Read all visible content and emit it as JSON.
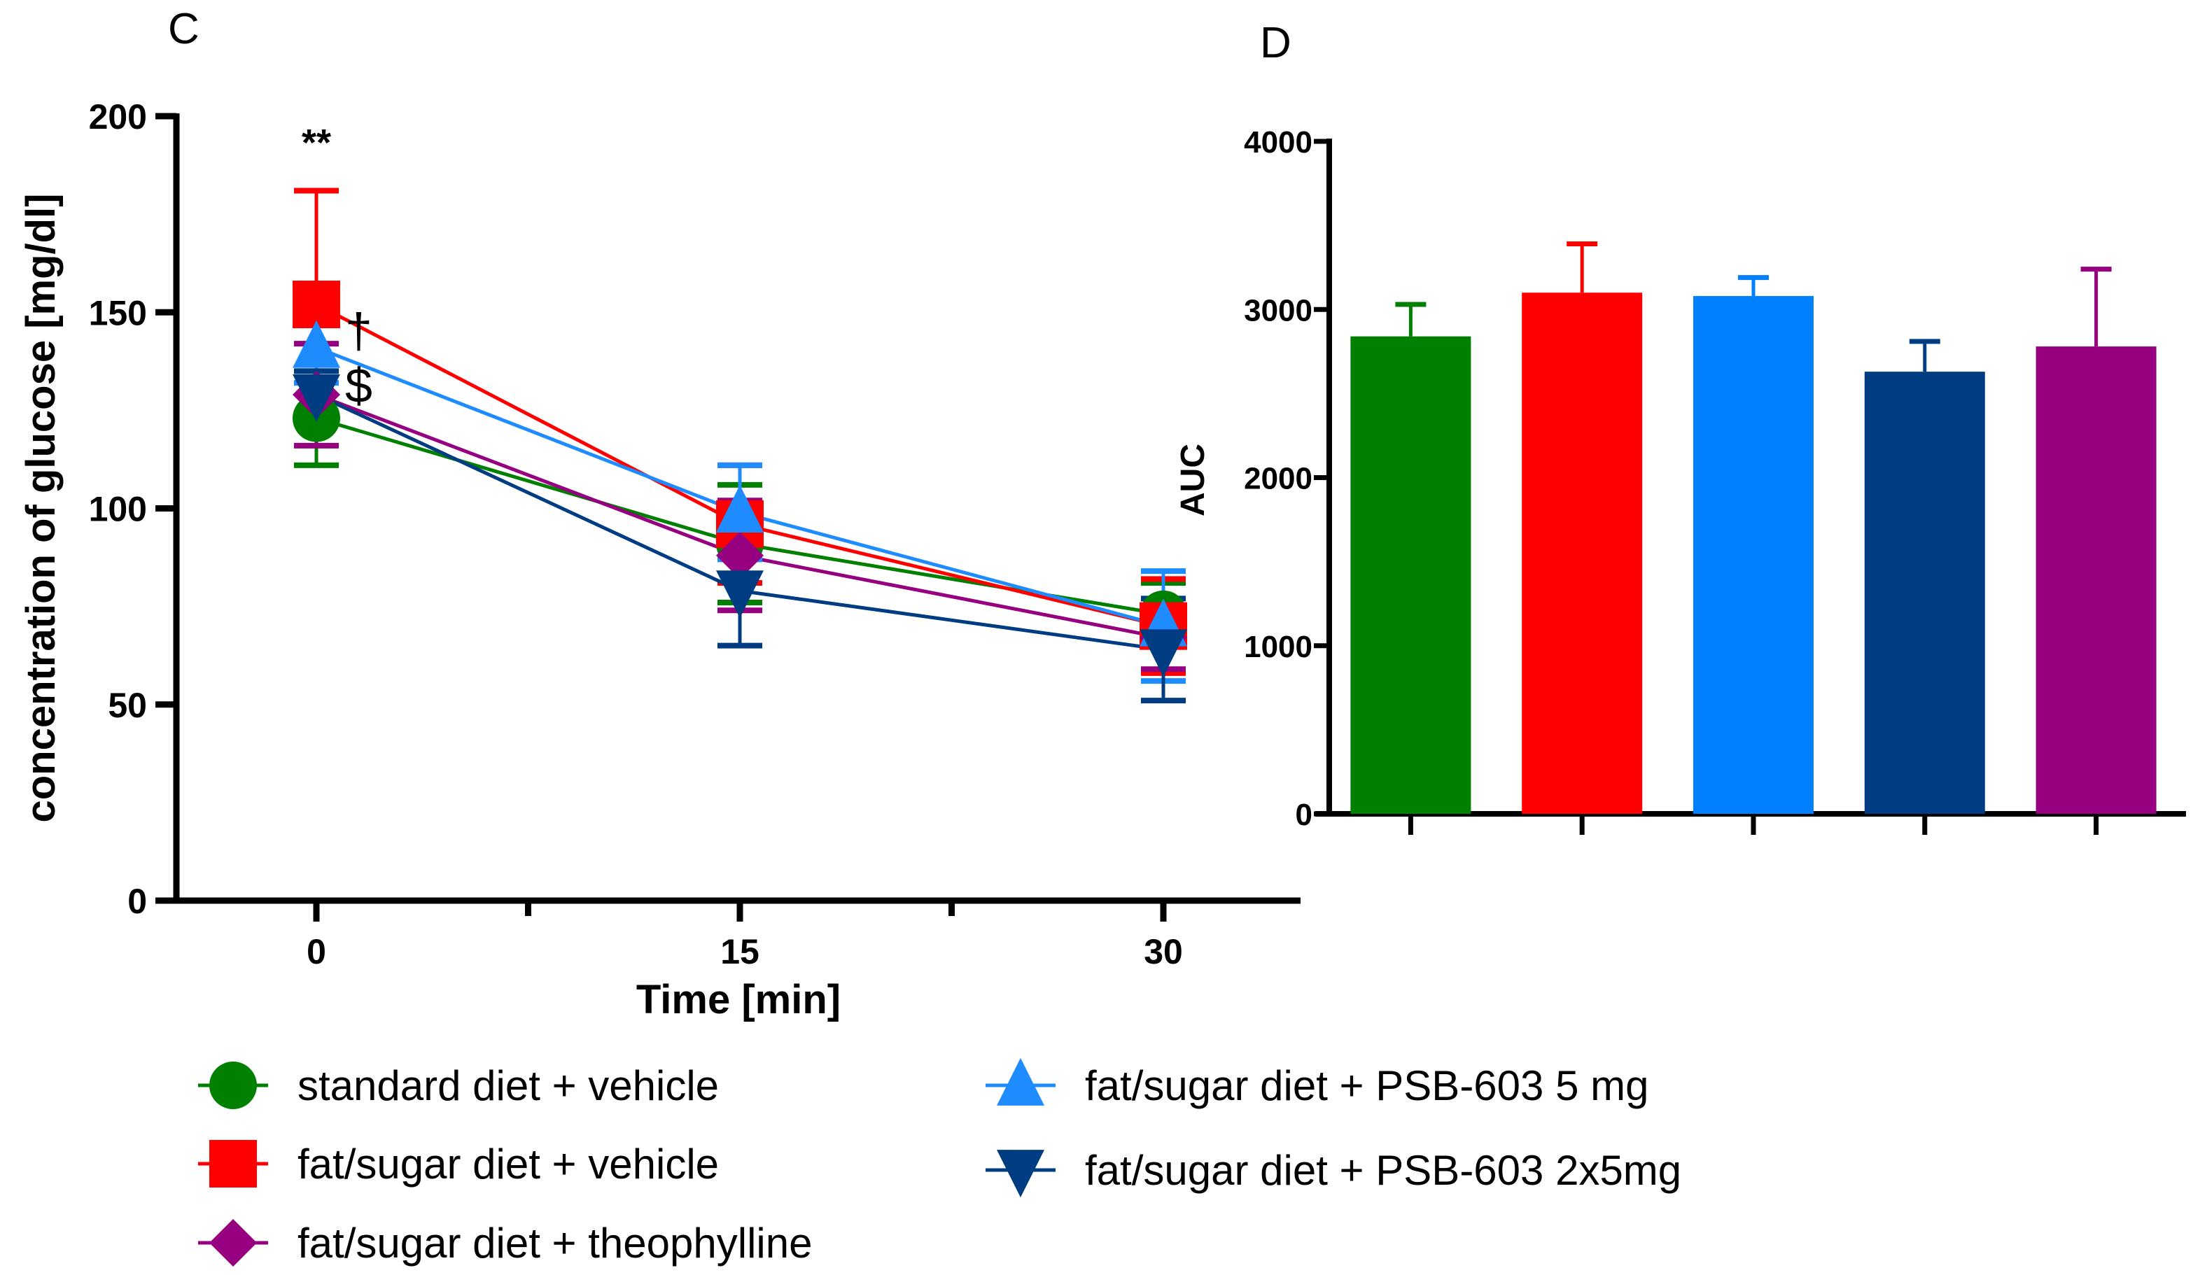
{
  "chart_data": [
    {
      "type": "line",
      "panel_label": "C",
      "xlabel": "Time [min]",
      "ylabel": "concentration of glucose [mg/dl]",
      "x": [
        0,
        15,
        30
      ],
      "x_ticks": [
        "0",
        "15",
        "30"
      ],
      "y_ticks": [
        "0",
        "50",
        "100",
        "150",
        "200"
      ],
      "ylim": [
        0,
        200
      ],
      "series": [
        {
          "name": "standard diet + vehicle",
          "color": "#008000",
          "marker": "circle",
          "values": [
            123,
            91,
            73
          ],
          "err": [
            12,
            15,
            8
          ]
        },
        {
          "name": "fat/sugar diet + vehicle",
          "color": "#ff0000",
          "marker": "square",
          "values": [
            152,
            96,
            70
          ],
          "err": [
            29,
            15,
            12
          ]
        },
        {
          "name": "fat/sugar diet + theophylline",
          "color": "#960080",
          "marker": "diamond",
          "values": [
            129,
            88,
            67
          ],
          "err": [
            13,
            14,
            8
          ]
        },
        {
          "name": "fat/sugar diet + PSB-603 5 mg",
          "color": "#1e8cff",
          "marker": "triangle-up",
          "values": [
            141,
            99,
            70
          ],
          "err": [
            9,
            12,
            14
          ]
        },
        {
          "name": "fat/sugar diet + PSB-603 2x5mg",
          "color": "#003c82",
          "marker": "triangle-down",
          "values": [
            129,
            79,
            64
          ],
          "err": [
            6,
            14,
            13
          ]
        }
      ],
      "annotations": [
        {
          "text": "**",
          "x": 0,
          "y": 190
        },
        {
          "text": "†",
          "x": 1.5,
          "y": 141
        },
        {
          "text": "$",
          "x": 1.5,
          "y": 127
        }
      ]
    },
    {
      "type": "bar",
      "panel_label": "D",
      "ylabel": "AUC",
      "y_ticks": [
        "0",
        "1000",
        "2000",
        "3000",
        "4000"
      ],
      "ylim": [
        0,
        4000
      ],
      "categories": [
        "standard diet + vehicle",
        "fat/sugar diet + vehicle",
        "fat/sugar diet + PSB-603 5 mg",
        "fat/sugar diet + PSB-603 2x5mg",
        "fat/sugar diet + theophylline"
      ],
      "colors": [
        "#008000",
        "#ff0000",
        "#0080ff",
        "#003c82",
        "#960080"
      ],
      "values": [
        2840,
        3100,
        3080,
        2630,
        2780
      ],
      "err": [
        190,
        290,
        110,
        180,
        460
      ]
    }
  ],
  "legend": [
    "standard diet + vehicle",
    "fat/sugar diet + vehicle",
    "fat/sugar diet + theophylline",
    "fat/sugar diet + PSB-603 5 mg",
    "fat/sugar diet + PSB-603 2x5mg"
  ]
}
